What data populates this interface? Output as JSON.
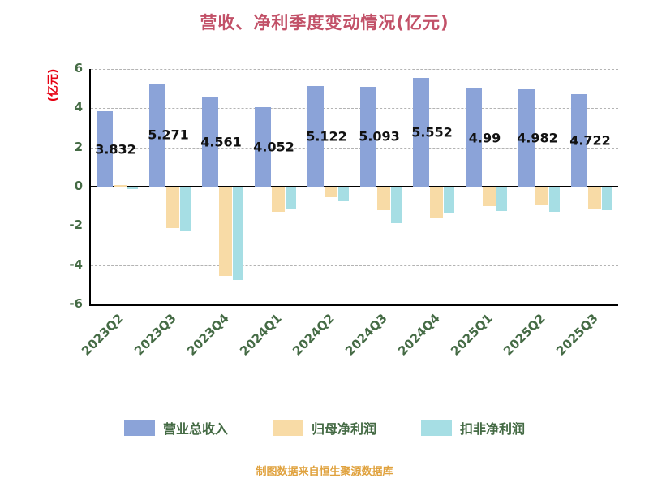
{
  "chart_data": {
    "type": "bar",
    "title": "营收、净利季度变动情况(亿元)",
    "ylabel": "(亿元)",
    "source_note": "制图数据来自恒生聚源数据库",
    "ylim": [
      -6,
      6
    ],
    "yticks": [
      6,
      4,
      2,
      0,
      -2,
      -4,
      -6
    ],
    "grid": true,
    "legend_position": "bottom",
    "categories": [
      "2023Q2",
      "2023Q3",
      "2023Q4",
      "2024Q1",
      "2024Q2",
      "2024Q3",
      "2024Q4",
      "2025Q1",
      "2025Q2",
      "2025Q3"
    ],
    "series": [
      {
        "name": "营业总收入",
        "color": "#8BA3D8",
        "values": [
          3.832,
          5.271,
          4.561,
          4.052,
          5.122,
          5.093,
          5.552,
          4.99,
          4.982,
          4.722
        ],
        "labels": [
          "3.832",
          "5.271",
          "4.561",
          "4.052",
          "5.122",
          "5.093",
          "5.552",
          "4.99",
          "4.982",
          "4.722"
        ],
        "show_labels": true
      },
      {
        "name": "归母净利润",
        "color": "#F8DBA6",
        "values": [
          0.08,
          -2.1,
          -4.55,
          -1.3,
          -0.55,
          -1.2,
          -1.6,
          -1.0,
          -0.9,
          -1.1
        ]
      },
      {
        "name": "扣非净利润",
        "color": "#A6DEE4",
        "values": [
          -0.12,
          -2.25,
          -4.75,
          -1.15,
          -0.75,
          -1.85,
          -1.35,
          -1.25,
          -1.3,
          -1.2
        ]
      }
    ],
    "colors": {
      "title": "#C25168",
      "axis_text": "#456B45",
      "ylabel_text": "#E60012",
      "source_note": "#E0A23E",
      "value_label": "#111111",
      "gridline": "#B3B3B3",
      "axis_line": "#000000"
    }
  }
}
